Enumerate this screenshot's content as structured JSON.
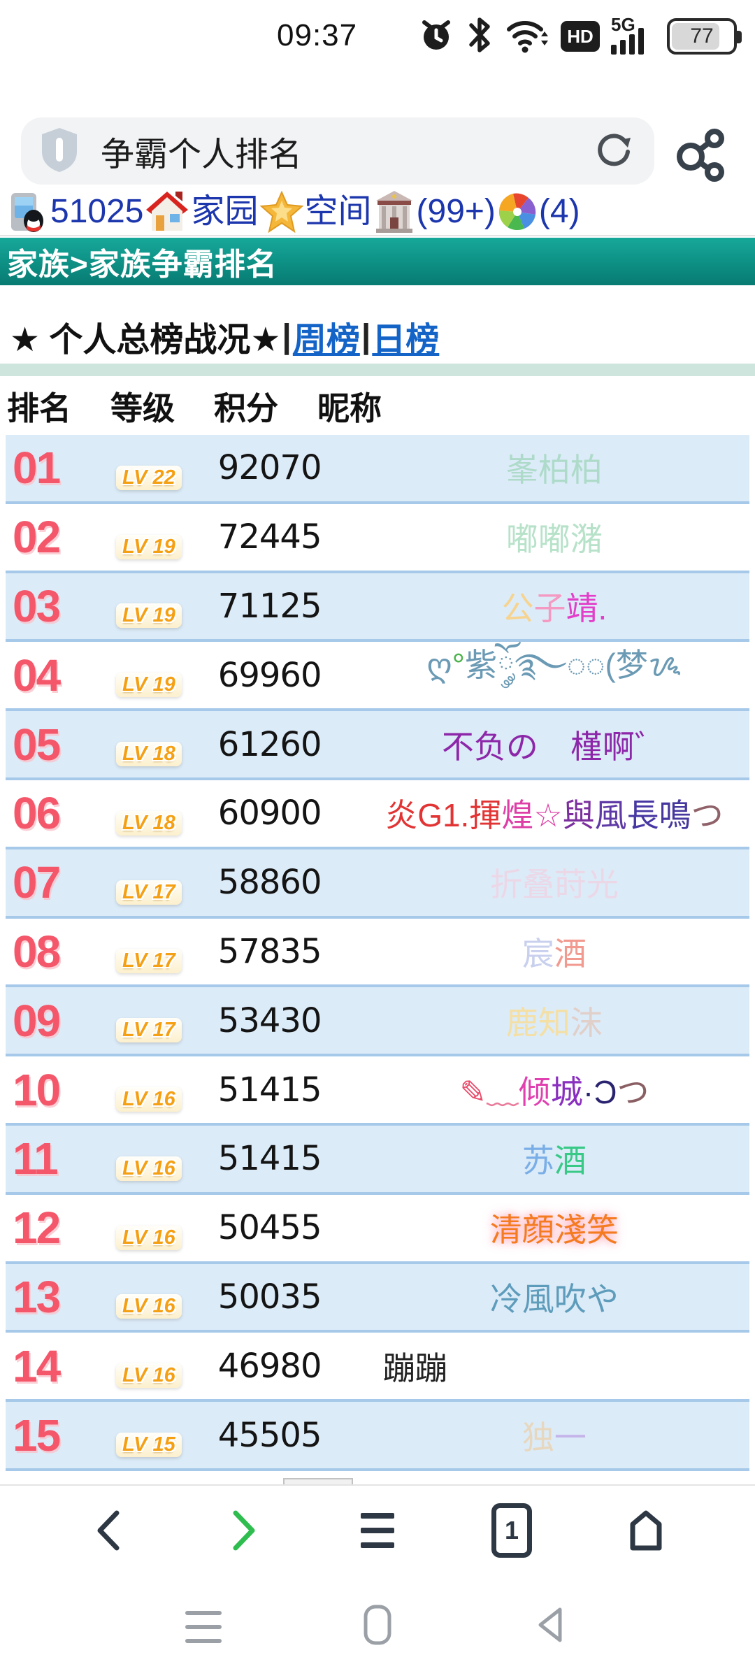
{
  "status_bar": {
    "time": "09:37",
    "battery_percent": "77",
    "icons": [
      "alarm-icon",
      "bluetooth-icon",
      "wifi-icon",
      "hd-icon",
      "5g-signal-icon",
      "battery-icon"
    ]
  },
  "search": {
    "query": "争霸个人排名"
  },
  "quick_links": {
    "items": [
      {
        "icon": "phone-qq-icon",
        "label": "51025"
      },
      {
        "icon": "house-icon",
        "label": "家园"
      },
      {
        "icon": "star-icon",
        "label": "空间"
      },
      {
        "icon": "building-icon",
        "label": "(99+)"
      },
      {
        "icon": "pinwheel-icon",
        "label": "(4)"
      }
    ]
  },
  "breadcrumb": {
    "text": "家族>家族争霸排名"
  },
  "board": {
    "title": "★ 个人总榜战况★ ",
    "pipe1": "|",
    "week_tab": "周榜",
    "pipe2": "|",
    "day_tab": "日榜"
  },
  "table": {
    "headers": [
      "排名",
      "等级",
      "积分",
      "昵称"
    ],
    "rows": [
      {
        "rank": "01",
        "level": "LV 22",
        "score": "92070",
        "name": [
          {
            "t": "峯柏柏",
            "c": "#aedbc9"
          }
        ]
      },
      {
        "rank": "02",
        "level": "LV 19",
        "score": "72445",
        "name": [
          {
            "t": "嘟嘟潴",
            "c": "#b7e2c9"
          }
        ]
      },
      {
        "rank": "03",
        "level": "LV 19",
        "score": "71125",
        "name": [
          {
            "t": "公",
            "c": "#f6d38f"
          },
          {
            "t": "子",
            "c": "#f49ac2"
          },
          {
            "t": "靖.",
            "c": "#e23ec9"
          }
        ]
      },
      {
        "rank": "04",
        "level": "LV 19",
        "score": "69960",
        "name": [
          {
            "t": "ღ",
            "c": "#6b9ab4"
          },
          {
            "t": "°",
            "c": "#4db34d"
          },
          {
            "t": "紫ོ༘࿐◌◌(梦ᝰ",
            "c": "#6b9ab4"
          }
        ]
      },
      {
        "rank": "05",
        "level": "LV 18",
        "score": "61260",
        "name": [
          {
            "t": "不负の　槿啊゛",
            "c": "#8d27a9"
          }
        ]
      },
      {
        "rank": "06",
        "level": "LV 18",
        "score": "60900",
        "name": [
          {
            "t": "炎G1.揮",
            "c": "#e23434"
          },
          {
            "t": "煌☆",
            "c": "#dd3fa6"
          },
          {
            "t": "與",
            "c": "#7b2f9e"
          },
          {
            "t": "風",
            "c": "#5f3aa6"
          },
          {
            "t": "長",
            "c": "#4637a2"
          },
          {
            "t": "鳴",
            "c": "#45379d"
          },
          {
            "t": "つ",
            "c": "#8f6168"
          }
        ]
      },
      {
        "rank": "07",
        "level": "LV 17",
        "score": "58860",
        "name": [
          {
            "t": "折叠莳光",
            "c": "#ecd7e7"
          }
        ]
      },
      {
        "rank": "08",
        "level": "LV 17",
        "score": "57835",
        "name": [
          {
            "t": "宸",
            "c": "#c9d0ee"
          },
          {
            "t": "酒",
            "c": "#f29a90"
          }
        ]
      },
      {
        "rank": "09",
        "level": "LV 17",
        "score": "53430",
        "name": [
          {
            "t": "鹿知",
            "c": "#f4dfa5"
          },
          {
            "t": "沫",
            "c": "#e1cfc9"
          }
        ]
      },
      {
        "rank": "10",
        "level": "LV 16",
        "score": "51415",
        "name": [
          {
            "t": "✎",
            "c": "#e84a6a"
          },
          {
            "t": "﹏",
            "c": "#e87a9a"
          },
          {
            "t": "倾",
            "c": "#e040b0"
          },
          {
            "t": "城",
            "c": "#8a2fbf"
          },
          {
            "t": "·Ɔ",
            "c": "#2a2470"
          },
          {
            "t": "つ",
            "c": "#8a5f63"
          }
        ]
      },
      {
        "rank": "11",
        "level": "LV 16",
        "score": "51415",
        "name": [
          {
            "t": "苏",
            "c": "#79aee7"
          },
          {
            "t": "酒",
            "c": "#38c987"
          }
        ]
      },
      {
        "rank": "12",
        "level": "LV 16",
        "score": "50455",
        "glow": "#ffb0c0",
        "name": [
          {
            "t": "清顔淺笑",
            "c": "#f47b20"
          }
        ]
      },
      {
        "rank": "13",
        "level": "LV 16",
        "score": "50035",
        "name": [
          {
            "t": "冷風吹や",
            "c": "#5e9cbb"
          }
        ]
      },
      {
        "rank": "14",
        "level": "LV 16",
        "score": "46980",
        "align": "left",
        "name": [
          {
            "t": "蹦蹦",
            "c": "#222222"
          }
        ]
      },
      {
        "rank": "15",
        "level": "LV 15",
        "score": "45505",
        "name": [
          {
            "t": "独",
            "c": "#e7d7be"
          },
          {
            "t": "一",
            "c": "#c4b4e9"
          }
        ]
      }
    ]
  },
  "toolbar": {
    "tab_count": "1"
  }
}
